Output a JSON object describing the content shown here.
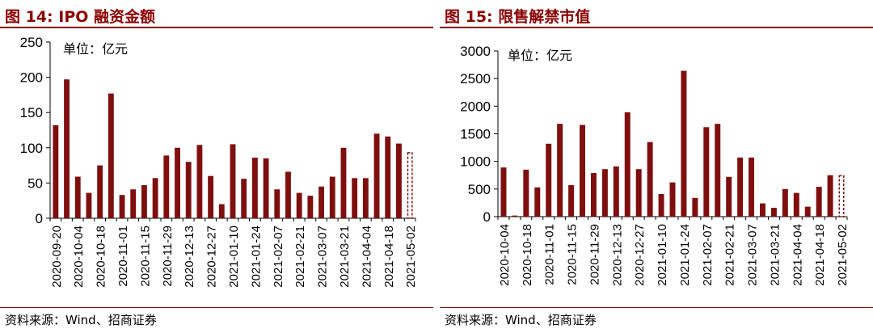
{
  "figures": [
    {
      "title": "图 14:  IPO 融资金额",
      "source": "资料来源：Wind、招商证券",
      "chart_data": {
        "type": "bar",
        "unit_label": "单位：亿元",
        "ylim": [
          0,
          250
        ],
        "yticks": [
          0,
          50,
          100,
          150,
          200,
          250
        ],
        "categories": [
          "2020-09-20",
          "",
          "2020-10-04",
          "",
          "2020-10-18",
          "",
          "2020-11-01",
          "",
          "2020-11-15",
          "",
          "2020-11-29",
          "",
          "2020-12-13",
          "",
          "2020-12-27",
          "",
          "2021-01-10",
          "",
          "2021-01-24",
          "",
          "2021-02-07",
          "",
          "2021-02-21",
          "",
          "2021-03-07",
          "",
          "2021-03-21",
          "",
          "2021-04-04",
          "",
          "2021-04-18",
          "",
          "2021-05-02"
        ],
        "values": [
          132,
          197,
          59,
          36,
          75,
          177,
          33,
          41,
          47,
          57,
          89,
          100,
          80,
          104,
          60,
          20,
          105,
          56,
          86,
          85,
          41,
          66,
          36,
          32,
          45,
          59,
          100,
          57,
          57,
          120,
          116,
          106,
          93
        ],
        "last_bar_dashed": true,
        "bar_color": "#7f0f0f",
        "grid": false,
        "legend": "none"
      }
    },
    {
      "title": "图 15:  限售解禁市值",
      "source": "资料来源：Wind、招商证券",
      "chart_data": {
        "type": "bar",
        "unit_label": "单位：亿元",
        "ylim": [
          0,
          3000
        ],
        "yticks": [
          0,
          500,
          1000,
          1500,
          2000,
          2500,
          3000
        ],
        "categories": [
          "2020-10-04",
          "",
          "2020-10-18",
          "",
          "2020-11-01",
          "",
          "2020-11-15",
          "",
          "2020-11-29",
          "",
          "2020-12-13",
          "",
          "2020-12-27",
          "",
          "2021-01-10",
          "",
          "2021-01-24",
          "",
          "2021-02-07",
          "",
          "2021-02-21",
          "",
          "2021-03-07",
          "",
          "2021-03-21",
          "",
          "2021-04-04",
          "",
          "2021-04-18",
          "",
          "2021-05-02"
        ],
        "values": [
          890,
          20,
          850,
          530,
          1320,
          1680,
          570,
          1660,
          790,
          860,
          910,
          1890,
          860,
          1350,
          410,
          620,
          2640,
          340,
          1620,
          1680,
          720,
          1070,
          1070,
          240,
          160,
          500,
          430,
          180,
          540,
          750,
          740
        ],
        "last_bar_dashed": true,
        "bar_color": "#7f0f0f",
        "grid": false,
        "legend": "none"
      }
    }
  ]
}
